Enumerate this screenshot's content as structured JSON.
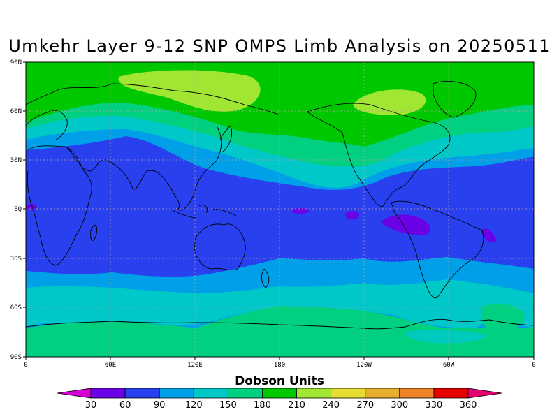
{
  "title": "Umkehr Layer 9-12 SNP OMPS Limb Analysis on 20250511",
  "colorbar": {
    "title": "Dobson Units",
    "labels": [
      "30",
      "60",
      "90",
      "120",
      "150",
      "180",
      "210",
      "240",
      "270",
      "300",
      "330",
      "360"
    ],
    "colors": [
      "#d500d5",
      "#6a00e6",
      "#2840ee",
      "#00a0e8",
      "#00c8c8",
      "#00d080",
      "#00c800",
      "#a0e632",
      "#e6dc32",
      "#e6af2d",
      "#f08228",
      "#e60000",
      "#e6006e"
    ]
  },
  "axes": {
    "x_ticks": [
      "0",
      "60E",
      "120E",
      "180",
      "120W",
      "60W",
      "0"
    ],
    "y_ticks": [
      "90N",
      "60N",
      "30N",
      "EQ",
      "30S",
      "60S",
      "90S"
    ]
  }
}
